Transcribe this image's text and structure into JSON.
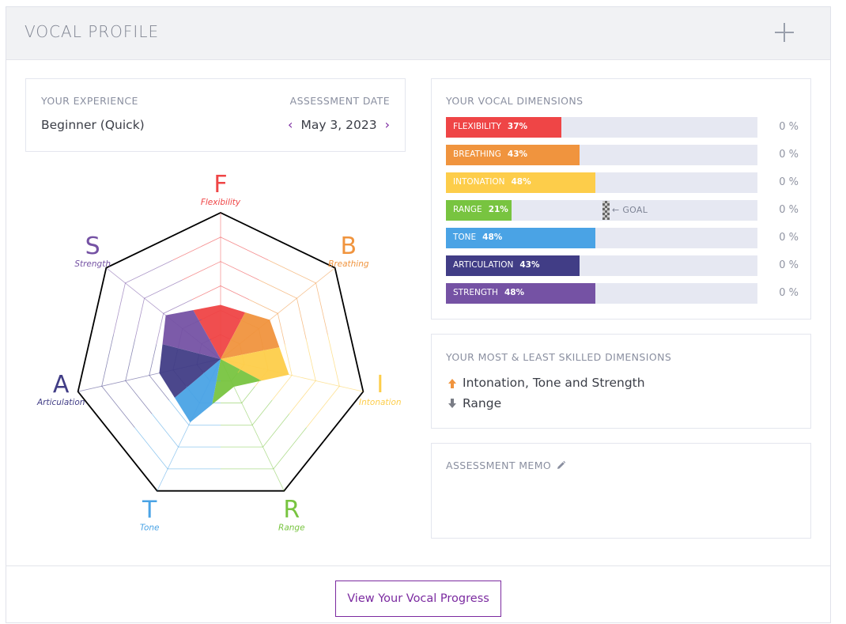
{
  "header": {
    "title": "VOCAL PROFILE",
    "toggle_icon": "plus-icon"
  },
  "experience": {
    "label": "YOUR EXPERIENCE",
    "value": "Beginner (Quick)",
    "date_label": "ASSESSMENT DATE",
    "date_value": "May 3, 2023",
    "prev_icon": "chevron-left-icon",
    "next_icon": "chevron-right-icon"
  },
  "radar": {
    "axes": [
      {
        "letter": "F",
        "label": "Flexibility",
        "value": 37,
        "color": "#ef4546"
      },
      {
        "letter": "B",
        "label": "Breathing",
        "value": 43,
        "color": "#f0943e"
      },
      {
        "letter": "I",
        "label": "Intonation",
        "value": 48,
        "color": "#fdcd4a"
      },
      {
        "letter": "R",
        "label": "Range",
        "value": 21,
        "color": "#78c440"
      },
      {
        "letter": "T",
        "label": "Tone",
        "value": 48,
        "color": "#4aa3e5"
      },
      {
        "letter": "A",
        "label": "Articulation",
        "value": 43,
        "color": "#413d86"
      },
      {
        "letter": "S",
        "label": "Strength",
        "value": 48,
        "color": "#7552a4"
      }
    ]
  },
  "dimensions": {
    "label": "YOUR VOCAL DIMENSIONS",
    "goal_label": "← GOAL",
    "items": [
      {
        "name": "FLEXIBILITY",
        "pct_text": "37%",
        "value": 37,
        "right": "0 %",
        "color": "#ef4546"
      },
      {
        "name": "BREATHING",
        "pct_text": "43%",
        "value": 43,
        "right": "0 %",
        "color": "#f0943e"
      },
      {
        "name": "INTONATION",
        "pct_text": "48%",
        "value": 48,
        "right": "0 %",
        "color": "#fdcd4a"
      },
      {
        "name": "RANGE",
        "pct_text": "21%",
        "value": 21,
        "right": "0 %",
        "color": "#78c440"
      },
      {
        "name": "TONE",
        "pct_text": "48%",
        "value": 48,
        "right": "0 %",
        "color": "#4aa3e5"
      },
      {
        "name": "ARTICULATION",
        "pct_text": "43%",
        "value": 43,
        "right": "0 %",
        "color": "#413d86"
      },
      {
        "name": "STRENGTH",
        "pct_text": "48%",
        "value": 48,
        "right": "0 %",
        "color": "#7552a4"
      }
    ]
  },
  "skills": {
    "label": "YOUR MOST & LEAST SKILLED DIMENSIONS",
    "most": "Intonation, Tone and Strength",
    "least": "Range"
  },
  "memo": {
    "label": "ASSESSMENT MEMO",
    "icon": "pencil-icon"
  },
  "footer": {
    "button_label": "View Your Vocal Progress"
  }
}
